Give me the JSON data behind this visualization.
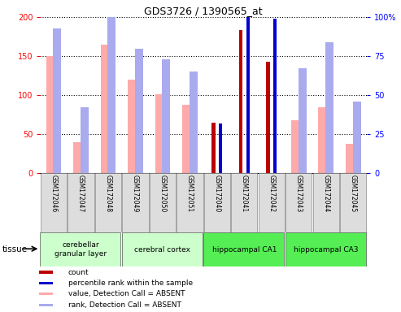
{
  "title": "GDS3726 / 1390565_at",
  "samples": [
    "GSM172046",
    "GSM172047",
    "GSM172048",
    "GSM172049",
    "GSM172050",
    "GSM172051",
    "GSM172040",
    "GSM172041",
    "GSM172042",
    "GSM172043",
    "GSM172044",
    "GSM172045"
  ],
  "absent_value": [
    150,
    40,
    165,
    120,
    101,
    88,
    null,
    null,
    null,
    68,
    85,
    38
  ],
  "absent_rank_pct": [
    93,
    42,
    104,
    80,
    73,
    65,
    null,
    null,
    null,
    67,
    84,
    46
  ],
  "count_values": [
    null,
    null,
    null,
    null,
    null,
    null,
    65,
    183,
    143,
    null,
    null,
    null
  ],
  "count_pct_rank": [
    null,
    null,
    null,
    null,
    null,
    null,
    32,
    101,
    99,
    null,
    null,
    null
  ],
  "ylim_left": [
    0,
    200
  ],
  "ylim_right": [
    0,
    100
  ],
  "yticks_left": [
    0,
    50,
    100,
    150,
    200
  ],
  "ytick_labels_left": [
    "0",
    "50",
    "100",
    "150",
    "200"
  ],
  "yticks_right": [
    0,
    25,
    50,
    75,
    100
  ],
  "ytick_labels_right": [
    "0",
    "25",
    "50",
    "75",
    "100%"
  ],
  "color_count": "#bb0000",
  "color_pct_rank": "#0000cc",
  "color_absent_value": "#ffaaaa",
  "color_absent_rank": "#aaaaee",
  "tissue_groups": [
    {
      "label": "cerebellar\ngranular layer",
      "start": 0,
      "end": 3,
      "color": "#ccffcc"
    },
    {
      "label": "cerebral cortex",
      "start": 3,
      "end": 6,
      "color": "#ccffcc"
    },
    {
      "label": "hippocampal CA1",
      "start": 6,
      "end": 9,
      "color": "#55ee55"
    },
    {
      "label": "hippocampal CA3",
      "start": 9,
      "end": 12,
      "color": "#55ee55"
    }
  ],
  "tissue_label": "tissue",
  "legend_items": [
    {
      "color": "#bb0000",
      "label": "count"
    },
    {
      "color": "#0000cc",
      "label": "percentile rank within the sample"
    },
    {
      "color": "#ffaaaa",
      "label": "value, Detection Call = ABSENT"
    },
    {
      "color": "#aaaaee",
      "label": "rank, Detection Call = ABSENT"
    }
  ]
}
